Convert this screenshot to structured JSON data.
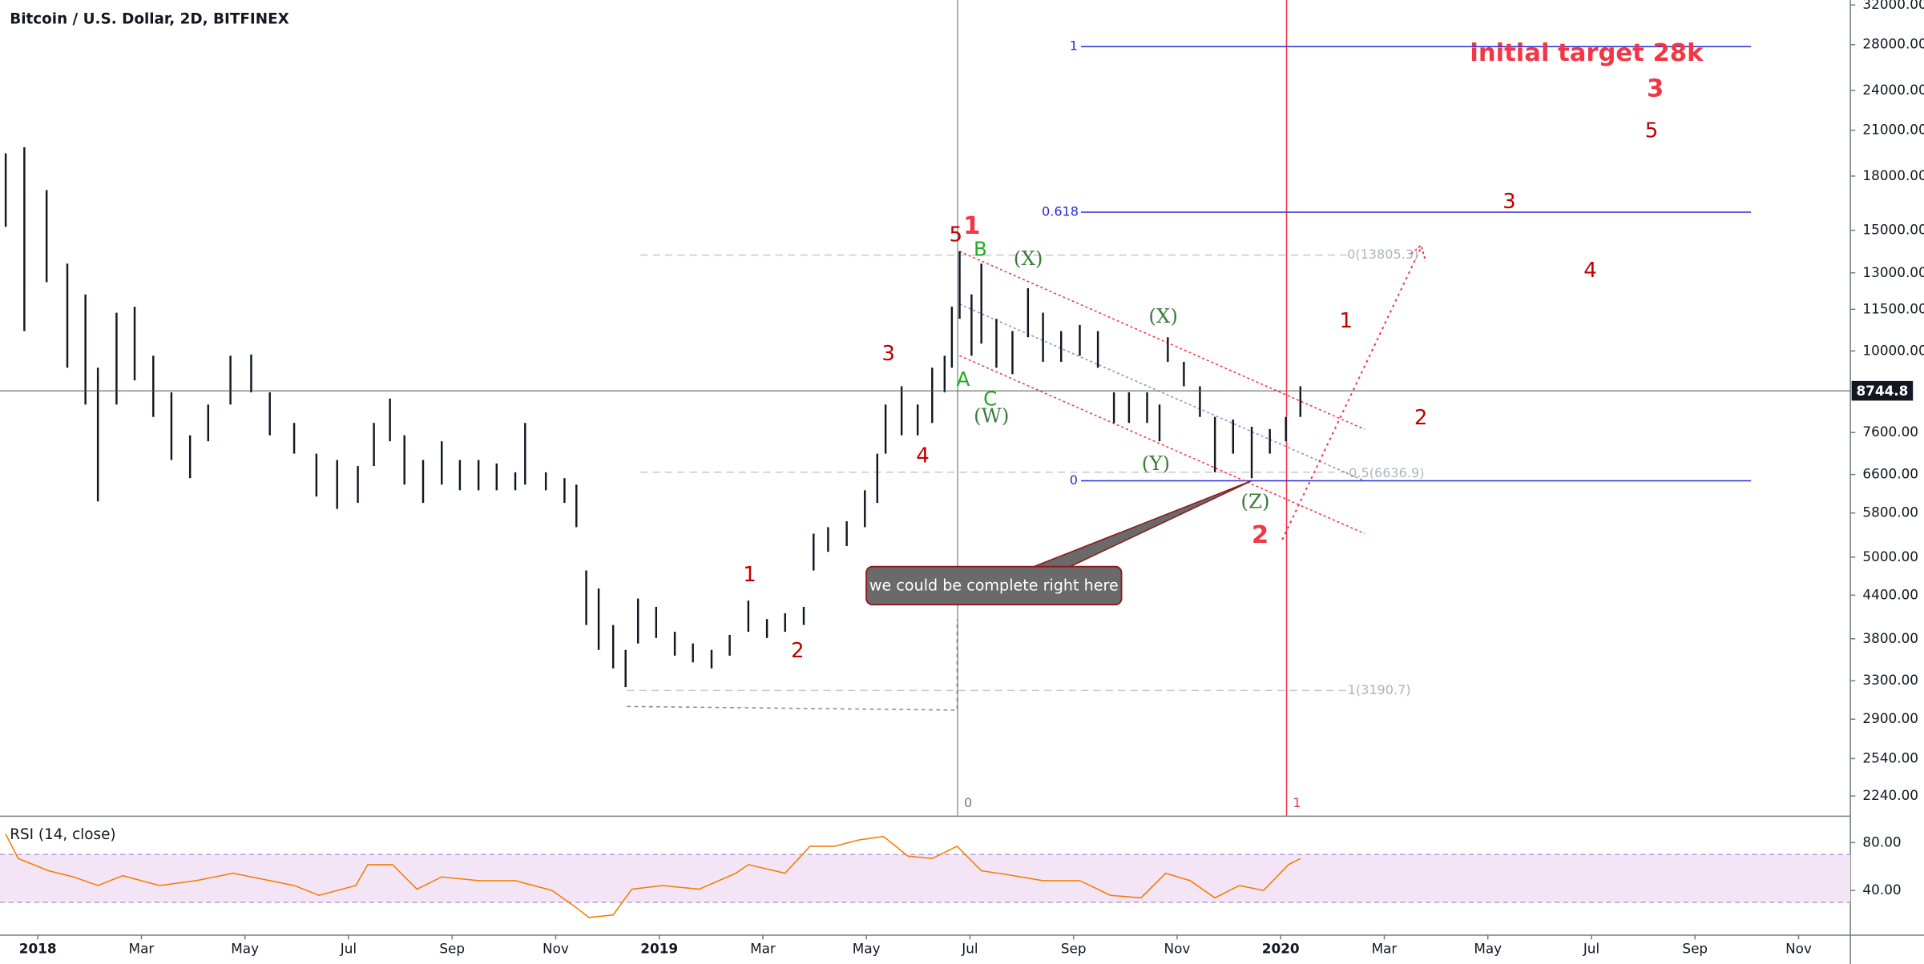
{
  "chart_data": [
    {
      "type": "ohlc",
      "title": "Bitcoin / U.S. Dollar, 2D, BITFINEX",
      "log_scale": true,
      "color": "#131722",
      "xlim": [
        -0.73,
        35
      ],
      "xticks": [
        {
          "value": 0,
          "label": "2018"
        },
        {
          "value": 2,
          "label": "Mar"
        },
        {
          "value": 4,
          "label": "May"
        },
        {
          "value": 6,
          "label": "Jul"
        },
        {
          "value": 8,
          "label": "Sep"
        },
        {
          "value": 10,
          "label": "Nov"
        },
        {
          "value": 12,
          "label": "2019"
        },
        {
          "value": 14,
          "label": "Mar"
        },
        {
          "value": 16,
          "label": "May"
        },
        {
          "value": 18,
          "label": "Jul"
        },
        {
          "value": 20,
          "label": "Sep"
        },
        {
          "value": 22,
          "label": "Nov"
        },
        {
          "value": 24,
          "label": "2020"
        },
        {
          "value": 26,
          "label": "Mar"
        },
        {
          "value": 28,
          "label": "May"
        },
        {
          "value": 30,
          "label": "Jul"
        },
        {
          "value": 32,
          "label": "Sep"
        },
        {
          "value": 34,
          "label": "Nov"
        }
      ],
      "ylim": [
        2097,
        32532
      ],
      "yticks": [
        {
          "value": 32000,
          "label": "32000.00"
        },
        {
          "value": 28000,
          "label": "28000.00"
        },
        {
          "value": 24000,
          "label": "24000.00"
        },
        {
          "value": 21000,
          "label": "21000.00"
        },
        {
          "value": 18000,
          "label": "18000.00"
        },
        {
          "value": 15000,
          "label": "15000.00"
        },
        {
          "value": 13000,
          "label": "13000.00"
        },
        {
          "value": 11500,
          "label": "11500.00"
        },
        {
          "value": 10000,
          "label": "10000.00"
        },
        {
          "value": 7600,
          "label": "7600.00"
        },
        {
          "value": 6600,
          "label": "6600.00"
        },
        {
          "value": 5800,
          "label": "5800.00"
        },
        {
          "value": 5000,
          "label": "5000.00"
        },
        {
          "value": 4400,
          "label": "4400.00"
        },
        {
          "value": 3800,
          "label": "3800.00"
        },
        {
          "value": 3300,
          "label": "3300.00"
        },
        {
          "value": 2900,
          "label": "2900.00"
        },
        {
          "value": 2540,
          "label": "2540.00"
        },
        {
          "value": 2240,
          "label": "2240.00"
        }
      ],
      "last_price": 8744.8,
      "x": [
        -0.62,
        -0.26,
        0.17,
        0.57,
        0.92,
        1.16,
        1.52,
        1.87,
        2.23,
        2.58,
        2.94,
        3.29,
        3.72,
        4.12,
        4.48,
        4.95,
        5.38,
        5.78,
        6.18,
        6.49,
        6.8,
        7.08,
        7.44,
        7.8,
        8.15,
        8.51,
        8.86,
        9.22,
        9.41,
        9.81,
        10.17,
        10.4,
        10.59,
        10.83,
        11.11,
        11.35,
        11.59,
        11.94,
        12.3,
        12.65,
        13.01,
        13.36,
        13.72,
        14.08,
        14.43,
        14.79,
        14.98,
        15.26,
        15.62,
        15.97,
        16.21,
        16.37,
        16.68,
        16.99,
        17.27,
        17.51,
        17.65,
        17.8,
        18.03,
        18.22,
        18.51,
        18.82,
        19.12,
        19.41,
        19.76,
        20.12,
        20.47,
        20.78,
        21.07,
        21.42,
        21.66,
        21.82,
        22.13,
        22.44,
        22.73,
        23.08,
        23.44,
        23.79,
        24.1,
        24.38
      ],
      "high": [
        19430,
        19830,
        17170,
        13410,
        12090,
        9450,
        11370,
        11600,
        9840,
        8700,
        7530,
        8350,
        9840,
        9880,
        8700,
        7850,
        7080,
        6930,
        6790,
        7850,
        8520,
        7530,
        6930,
        7380,
        6930,
        6930,
        6850,
        6650,
        7850,
        6650,
        6520,
        6380,
        4780,
        4500,
        3980,
        3660,
        4350,
        4230,
        3890,
        3740,
        3660,
        3850,
        4320,
        4060,
        4140,
        4230,
        5410,
        5530,
        5640,
        6260,
        7080,
        8350,
        8880,
        8350,
        9450,
        9840,
        11600,
        13980,
        12090,
        13410,
        11140,
        10690,
        12350,
        11370,
        10690,
        10910,
        10690,
        8700,
        8700,
        8700,
        8350,
        10470,
        9640,
        8880,
        8010,
        7940,
        7750,
        7690,
        8010,
        8880
      ],
      "low": [
        15180,
        10690,
        12600,
        9450,
        8350,
        6030,
        8350,
        9060,
        8010,
        6930,
        6520,
        7380,
        8350,
        8700,
        7530,
        7080,
        6130,
        5880,
        6000,
        6790,
        7380,
        6380,
        6000,
        6380,
        6260,
        6260,
        6260,
        6260,
        6380,
        6260,
        6000,
        5530,
        3980,
        3660,
        3440,
        3230,
        3740,
        3810,
        3590,
        3510,
        3440,
        3590,
        3890,
        3810,
        3890,
        3980,
        4780,
        5090,
        5190,
        5530,
        6000,
        7080,
        7530,
        7530,
        7850,
        8700,
        9450,
        11140,
        9840,
        10250,
        9450,
        9250,
        10470,
        9640,
        9640,
        9840,
        9450,
        7850,
        7850,
        7850,
        7380,
        9640,
        8880,
        8010,
        6650,
        7080,
        6520,
        7080,
        7380,
        8010
      ],
      "annotations": [
        "initial target 28k",
        "3",
        "5",
        "3",
        "4",
        "1",
        "2",
        "1",
        "5",
        "B",
        "(X)",
        "(X)",
        "3",
        "A",
        "C",
        "(W)",
        "4",
        "(Y)",
        "(Z)",
        "2",
        "1",
        "2"
      ],
      "fib_labels": [
        "1",
        "0.618",
        "0",
        "0(13805.3)",
        "0.5(6636.9)",
        "1(3190.7)"
      ],
      "vline_labels": [
        "0",
        "1"
      ],
      "callout": "we could be complete right here"
    },
    {
      "type": "line",
      "title": "RSI (14, close)",
      "color": "#f57c00",
      "band": [
        30,
        70
      ],
      "band_color": "#f3e5f5",
      "xlim": [
        -0.73,
        35
      ],
      "ylim": [
        3.1,
        100.5
      ],
      "yticks": [
        {
          "value": 80,
          "label": "80.00"
        },
        {
          "value": 40,
          "label": "40.00"
        }
      ],
      "x": [
        -0.62,
        -0.38,
        0.21,
        0.69,
        1.16,
        1.64,
        2.35,
        3.06,
        3.77,
        4.24,
        4.95,
        5.43,
        6.14,
        6.37,
        6.85,
        7.32,
        7.8,
        8.51,
        9.22,
        9.93,
        10.4,
        10.64,
        11.11,
        11.47,
        12.06,
        12.77,
        13.48,
        13.72,
        14.43,
        14.91,
        15.38,
        15.85,
        16.33,
        16.8,
        17.27,
        17.75,
        18.22,
        18.7,
        19.41,
        20.12,
        20.71,
        21.3,
        21.78,
        22.25,
        22.73,
        23.2,
        23.67,
        24.15,
        24.38
      ],
      "values": [
        87.2,
        66.7,
        56.4,
        51.3,
        44.1,
        52.3,
        44.1,
        48.2,
        54.4,
        50.3,
        44.1,
        35.9,
        44.1,
        61.5,
        61.5,
        41.0,
        51.3,
        48.2,
        48.2,
        40.0,
        25.6,
        17.4,
        19.5,
        41.0,
        44.1,
        41.0,
        54.4,
        61.5,
        54.4,
        76.9,
        76.9,
        82.1,
        85.1,
        68.7,
        66.7,
        76.9,
        56.4,
        53.3,
        48.2,
        48.2,
        35.9,
        33.8,
        54.4,
        48.2,
        33.8,
        44.1,
        40.0,
        61.5,
        66.7
      ]
    }
  ]
}
